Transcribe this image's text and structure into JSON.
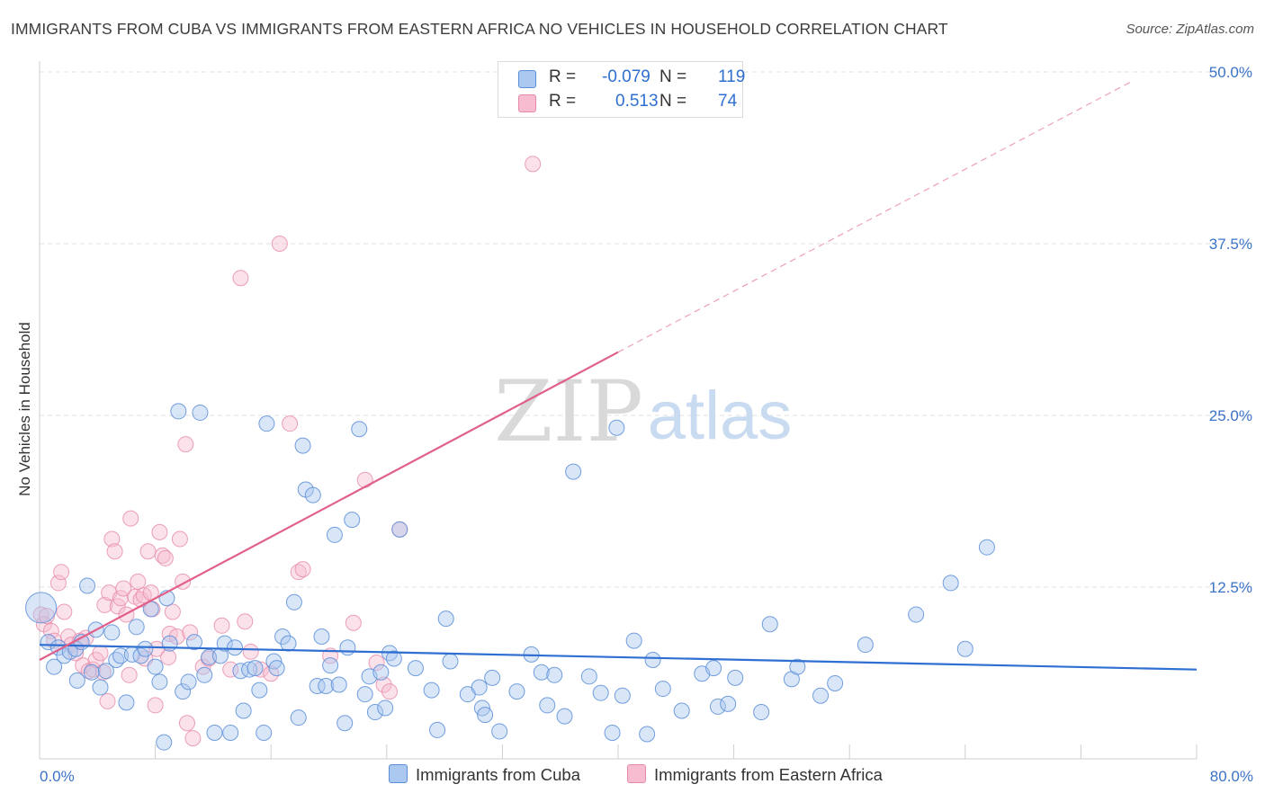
{
  "title": "IMMIGRANTS FROM CUBA VS IMMIGRANTS FROM EASTERN AFRICA NO VEHICLES IN HOUSEHOLD CORRELATION CHART",
  "source": "Source: ZipAtlas.com",
  "watermark": {
    "zip": "ZIP",
    "atlas": "atlas"
  },
  "stats": {
    "cuba": {
      "r_label": "R =",
      "r_value": "-0.079",
      "n_label": "N =",
      "n_value": "119"
    },
    "eafrica": {
      "r_label": "R =",
      "r_value": "0.513",
      "n_label": "N =",
      "n_value": "74"
    }
  },
  "legend": {
    "cuba": "Immigrants from Cuba",
    "eafrica": "Immigrants from Eastern Africa"
  },
  "colors": {
    "cuba_fill": "#aac8f0",
    "cuba_stroke": "#5b8ed8",
    "cuba_line": "#2f6fd1",
    "eafrica_fill": "#f7bcd0",
    "eafrica_stroke": "#e68aa9",
    "eafrica_line": "#e0608a",
    "tick_text": "#3b73c8",
    "grid": "#e2e2e2"
  },
  "chart_data": {
    "type": "scatter",
    "title": "IMMIGRANTS FROM CUBA VS IMMIGRANTS FROM EASTERN AFRICA NO VEHICLES IN HOUSEHOLD CORRELATION CHART",
    "xlabel": "",
    "ylabel": "No Vehicles in Household",
    "xlim": [
      0,
      80
    ],
    "ylim": [
      0,
      50
    ],
    "x_tick_labels": [
      "0.0%",
      "80.0%"
    ],
    "y_ticks": [
      12.5,
      25.0,
      37.5,
      50.0
    ],
    "y_tick_labels": [
      "12.5%",
      "25.0%",
      "37.5%",
      "50.0%"
    ],
    "grid": true,
    "legend_position": "bottom-center",
    "series": [
      {
        "name": "Immigrants from Cuba",
        "r": -0.079,
        "n": 119,
        "trend": {
          "x": [
            0,
            80
          ],
          "y": [
            8.3,
            6.5
          ]
        },
        "points": [
          [
            0.1,
            11.0
          ],
          [
            0.6,
            8.5
          ],
          [
            1.0,
            6.7
          ],
          [
            1.3,
            8.1
          ],
          [
            1.7,
            7.5
          ],
          [
            2.1,
            7.8
          ],
          [
            2.5,
            8.0
          ],
          [
            2.6,
            5.7
          ],
          [
            2.9,
            8.5
          ],
          [
            3.3,
            12.6
          ],
          [
            3.6,
            6.3
          ],
          [
            3.9,
            9.4
          ],
          [
            4.2,
            5.2
          ],
          [
            4.6,
            6.4
          ],
          [
            5.0,
            9.2
          ],
          [
            5.3,
            7.2
          ],
          [
            5.6,
            7.5
          ],
          [
            6.0,
            4.1
          ],
          [
            6.4,
            7.6
          ],
          [
            6.7,
            9.6
          ],
          [
            7.0,
            7.5
          ],
          [
            7.3,
            8.0
          ],
          [
            7.7,
            10.9
          ],
          [
            8.0,
            6.7
          ],
          [
            8.3,
            5.6
          ],
          [
            8.6,
            1.2
          ],
          [
            8.8,
            11.7
          ],
          [
            9.0,
            8.4
          ],
          [
            9.6,
            25.3
          ],
          [
            9.9,
            4.9
          ],
          [
            10.3,
            5.6
          ],
          [
            10.7,
            8.5
          ],
          [
            11.1,
            25.2
          ],
          [
            11.4,
            6.1
          ],
          [
            11.7,
            7.4
          ],
          [
            12.1,
            1.9
          ],
          [
            12.5,
            7.5
          ],
          [
            12.8,
            8.4
          ],
          [
            13.2,
            1.9
          ],
          [
            13.5,
            8.1
          ],
          [
            13.9,
            6.4
          ],
          [
            14.1,
            3.5
          ],
          [
            14.5,
            6.5
          ],
          [
            14.9,
            6.6
          ],
          [
            15.2,
            5.0
          ],
          [
            15.5,
            1.9
          ],
          [
            15.7,
            24.4
          ],
          [
            16.2,
            7.1
          ],
          [
            16.4,
            6.6
          ],
          [
            16.8,
            8.9
          ],
          [
            17.2,
            8.4
          ],
          [
            17.6,
            11.4
          ],
          [
            17.9,
            3.0
          ],
          [
            18.2,
            22.8
          ],
          [
            18.4,
            19.6
          ],
          [
            18.9,
            19.2
          ],
          [
            19.2,
            5.3
          ],
          [
            19.5,
            8.9
          ],
          [
            19.8,
            5.3
          ],
          [
            20.1,
            6.8
          ],
          [
            20.4,
            16.3
          ],
          [
            20.7,
            5.4
          ],
          [
            21.1,
            2.6
          ],
          [
            21.3,
            8.1
          ],
          [
            21.6,
            17.4
          ],
          [
            22.1,
            24.0
          ],
          [
            22.5,
            4.7
          ],
          [
            22.8,
            6.0
          ],
          [
            23.2,
            3.4
          ],
          [
            23.6,
            6.3
          ],
          [
            23.9,
            3.7
          ],
          [
            24.2,
            7.7
          ],
          [
            24.5,
            7.3
          ],
          [
            24.9,
            16.7
          ],
          [
            26.0,
            6.6
          ],
          [
            27.1,
            5.0
          ],
          [
            27.5,
            2.1
          ],
          [
            28.1,
            10.2
          ],
          [
            28.4,
            7.1
          ],
          [
            29.6,
            4.7
          ],
          [
            30.4,
            5.2
          ],
          [
            30.6,
            3.7
          ],
          [
            30.8,
            3.2
          ],
          [
            31.3,
            5.9
          ],
          [
            31.8,
            2.0
          ],
          [
            33.0,
            4.9
          ],
          [
            34.0,
            7.6
          ],
          [
            34.7,
            6.3
          ],
          [
            35.1,
            3.9
          ],
          [
            35.6,
            6.1
          ],
          [
            36.3,
            3.1
          ],
          [
            36.9,
            20.9
          ],
          [
            38.0,
            6.0
          ],
          [
            38.8,
            4.8
          ],
          [
            39.6,
            1.9
          ],
          [
            39.9,
            24.1
          ],
          [
            40.3,
            4.6
          ],
          [
            41.1,
            8.6
          ],
          [
            42.0,
            1.8
          ],
          [
            42.4,
            7.2
          ],
          [
            43.1,
            5.1
          ],
          [
            44.4,
            3.5
          ],
          [
            45.8,
            6.2
          ],
          [
            46.6,
            6.6
          ],
          [
            46.9,
            3.8
          ],
          [
            47.6,
            4.0
          ],
          [
            48.1,
            5.9
          ],
          [
            49.9,
            3.4
          ],
          [
            50.5,
            9.8
          ],
          [
            52.0,
            5.8
          ],
          [
            52.4,
            6.7
          ],
          [
            54.0,
            4.6
          ],
          [
            55.0,
            5.5
          ],
          [
            57.1,
            8.3
          ],
          [
            60.6,
            10.5
          ],
          [
            63.0,
            12.8
          ],
          [
            64.0,
            8.0
          ],
          [
            65.5,
            15.4
          ]
        ]
      },
      {
        "name": "Immigrants from Eastern Africa",
        "r": 0.513,
        "n": 74,
        "trend": {
          "x": [
            0,
            40
          ],
          "y": [
            7.2,
            29.6
          ]
        },
        "trend_extension": {
          "x": [
            40,
            75.5
          ],
          "y": [
            29.6,
            49.3
          ]
        },
        "points": [
          [
            0.1,
            10.5
          ],
          [
            0.3,
            9.8
          ],
          [
            0.5,
            10.4
          ],
          [
            0.8,
            9.3
          ],
          [
            1.0,
            8.6
          ],
          [
            1.3,
            12.8
          ],
          [
            1.5,
            13.6
          ],
          [
            1.7,
            10.7
          ],
          [
            2.0,
            8.9
          ],
          [
            2.2,
            8.3
          ],
          [
            2.5,
            7.7
          ],
          [
            2.8,
            8.6
          ],
          [
            3.0,
            6.8
          ],
          [
            3.2,
            8.8
          ],
          [
            3.4,
            6.4
          ],
          [
            3.7,
            6.5
          ],
          [
            3.9,
            7.2
          ],
          [
            4.2,
            7.7
          ],
          [
            4.4,
            6.3
          ],
          [
            4.5,
            11.2
          ],
          [
            4.7,
            4.2
          ],
          [
            4.8,
            12.1
          ],
          [
            5.0,
            16.0
          ],
          [
            5.2,
            15.1
          ],
          [
            5.4,
            11.1
          ],
          [
            5.6,
            11.7
          ],
          [
            5.8,
            12.4
          ],
          [
            6.0,
            10.5
          ],
          [
            6.2,
            6.1
          ],
          [
            6.3,
            17.5
          ],
          [
            6.6,
            11.8
          ],
          [
            6.8,
            12.9
          ],
          [
            7.0,
            11.6
          ],
          [
            7.2,
            11.9
          ],
          [
            7.3,
            7.3
          ],
          [
            7.5,
            15.1
          ],
          [
            7.7,
            12.1
          ],
          [
            7.8,
            10.9
          ],
          [
            8.0,
            3.9
          ],
          [
            8.1,
            8.0
          ],
          [
            8.3,
            16.5
          ],
          [
            8.5,
            14.8
          ],
          [
            8.7,
            14.6
          ],
          [
            8.9,
            7.4
          ],
          [
            9.0,
            9.1
          ],
          [
            9.2,
            10.7
          ],
          [
            9.5,
            8.9
          ],
          [
            9.7,
            16.0
          ],
          [
            9.9,
            12.9
          ],
          [
            10.1,
            22.9
          ],
          [
            10.2,
            2.6
          ],
          [
            10.4,
            9.2
          ],
          [
            10.6,
            1.5
          ],
          [
            11.3,
            6.7
          ],
          [
            11.7,
            7.3
          ],
          [
            12.6,
            9.7
          ],
          [
            13.2,
            6.5
          ],
          [
            13.9,
            35.0
          ],
          [
            14.2,
            10.0
          ],
          [
            14.6,
            7.8
          ],
          [
            15.3,
            6.5
          ],
          [
            16.0,
            6.2
          ],
          [
            16.6,
            37.5
          ],
          [
            17.3,
            24.4
          ],
          [
            17.9,
            13.6
          ],
          [
            18.2,
            13.8
          ],
          [
            20.1,
            7.5
          ],
          [
            21.7,
            9.9
          ],
          [
            22.5,
            20.3
          ],
          [
            23.3,
            7.0
          ],
          [
            23.8,
            5.4
          ],
          [
            24.2,
            4.9
          ],
          [
            24.9,
            16.7
          ],
          [
            34.1,
            43.3
          ]
        ]
      }
    ]
  }
}
